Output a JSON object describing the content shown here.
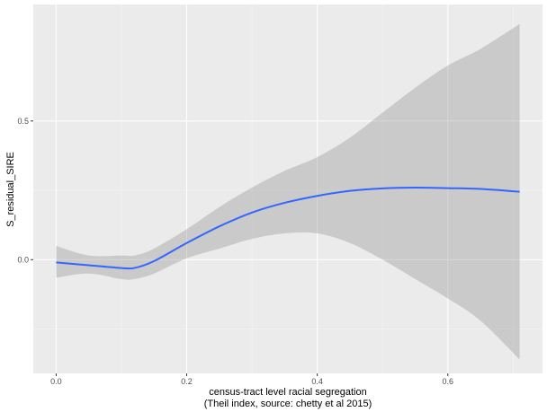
{
  "chart_data": {
    "type": "line",
    "title": "",
    "xlabel": [
      "census-tract level racial segregation",
      "(Theil index, source: chetty et al 2015)"
    ],
    "ylabel": "S_residual_SIRE",
    "xlim": [
      -0.035,
      0.745
    ],
    "ylim": [
      -0.41,
      0.92
    ],
    "x_ticks": [
      0.0,
      0.2,
      0.4,
      0.6
    ],
    "x_tick_labels": [
      "0.0",
      "0.2",
      "0.4",
      "0.6"
    ],
    "y_ticks": [
      0.0,
      0.5
    ],
    "y_tick_labels": [
      "0.0",
      "0.5"
    ],
    "grid": true,
    "series": [
      {
        "kind": "smooth",
        "color": "#3366FF",
        "ribbon_color": "#999999",
        "x": [
          0.0,
          0.05,
          0.1,
          0.12,
          0.15,
          0.2,
          0.25,
          0.3,
          0.35,
          0.4,
          0.45,
          0.5,
          0.55,
          0.6,
          0.65,
          0.71
        ],
        "y": [
          -0.01,
          -0.02,
          -0.03,
          -0.03,
          -0.005,
          0.06,
          0.12,
          0.17,
          0.205,
          0.23,
          0.248,
          0.257,
          0.26,
          0.258,
          0.255,
          0.245
        ],
        "lower": [
          -0.065,
          -0.05,
          -0.07,
          -0.07,
          -0.05,
          0.005,
          0.04,
          0.075,
          0.095,
          0.095,
          0.06,
          0.0,
          -0.07,
          -0.14,
          -0.22,
          -0.36
        ],
        "upper": [
          0.05,
          0.015,
          0.015,
          0.015,
          0.04,
          0.11,
          0.19,
          0.26,
          0.32,
          0.37,
          0.44,
          0.53,
          0.62,
          0.7,
          0.76,
          0.85
        ]
      }
    ]
  }
}
